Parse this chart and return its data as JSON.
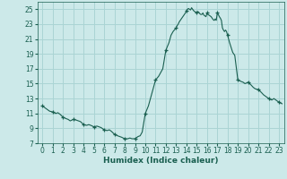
{
  "xlabel": "Humidex (Indice chaleur)",
  "xlim": [
    -0.5,
    23.5
  ],
  "ylim": [
    7,
    26
  ],
  "yticks": [
    7,
    9,
    11,
    13,
    15,
    17,
    19,
    21,
    23,
    25
  ],
  "xticks": [
    0,
    1,
    2,
    3,
    4,
    5,
    6,
    7,
    8,
    9,
    10,
    11,
    12,
    13,
    14,
    15,
    16,
    17,
    18,
    19,
    20,
    21,
    22,
    23
  ],
  "bg_color": "#cce9e9",
  "grid_color": "#aad4d4",
  "line_color": "#1a5f50",
  "x": [
    0,
    0.3,
    0.5,
    0.7,
    1,
    1.3,
    1.5,
    1.7,
    2,
    2.3,
    2.5,
    2.7,
    3,
    3.3,
    3.5,
    3.7,
    4,
    4.3,
    4.5,
    4.7,
    5,
    5.3,
    5.5,
    5.7,
    6,
    6.3,
    6.5,
    6.7,
    7,
    7.3,
    7.5,
    7.7,
    8,
    8.3,
    8.5,
    8.7,
    9,
    9.3,
    9.5,
    9.7,
    10,
    10.3,
    10.5,
    10.7,
    11,
    11.3,
    11.5,
    11.7,
    12,
    12.3,
    12.5,
    12.7,
    13,
    13.1,
    13.2,
    13.3,
    13.4,
    13.5,
    13.6,
    13.7,
    13.8,
    13.9,
    14,
    14.1,
    14.2,
    14.3,
    14.4,
    14.5,
    14.6,
    14.7,
    14.8,
    14.9,
    15,
    15.1,
    15.2,
    15.3,
    15.4,
    15.5,
    15.6,
    15.7,
    15.8,
    15.9,
    16,
    16.1,
    16.2,
    16.3,
    16.4,
    16.5,
    16.6,
    16.7,
    16.8,
    16.9,
    17,
    17.1,
    17.2,
    17.3,
    17.4,
    17.5,
    17.6,
    17.7,
    17.8,
    17.9,
    18,
    18.2,
    18.5,
    18.7,
    19,
    19.3,
    19.5,
    19.7,
    20,
    20.3,
    20.5,
    20.7,
    21,
    21.3,
    21.5,
    21.7,
    22,
    22.3,
    22.5,
    22.7,
    23,
    23.3
  ],
  "y": [
    12.0,
    11.7,
    11.5,
    11.3,
    11.2,
    11.0,
    11.1,
    10.9,
    10.5,
    10.3,
    10.2,
    10.0,
    10.2,
    10.1,
    10.0,
    9.9,
    9.5,
    9.4,
    9.5,
    9.4,
    9.2,
    9.3,
    9.2,
    9.1,
    8.8,
    8.7,
    8.8,
    8.6,
    8.2,
    8.0,
    7.9,
    7.8,
    7.6,
    7.6,
    7.7,
    7.6,
    7.6,
    7.9,
    8.0,
    8.5,
    11.0,
    12.0,
    13.0,
    14.0,
    15.5,
    16.0,
    16.5,
    17.0,
    19.5,
    20.5,
    21.5,
    22.0,
    22.5,
    22.8,
    23.0,
    23.3,
    23.5,
    23.7,
    23.9,
    24.1,
    24.3,
    24.5,
    24.8,
    25.0,
    25.1,
    25.0,
    24.9,
    25.2,
    25.0,
    24.8,
    24.7,
    24.6,
    24.5,
    24.7,
    24.6,
    24.4,
    24.3,
    24.3,
    24.5,
    24.2,
    24.1,
    24.0,
    24.5,
    24.3,
    24.2,
    24.1,
    24.0,
    23.8,
    23.6,
    23.5,
    23.7,
    23.5,
    24.5,
    24.3,
    24.0,
    23.8,
    23.5,
    22.5,
    22.2,
    22.0,
    22.2,
    22.0,
    21.5,
    20.5,
    19.2,
    18.8,
    15.5,
    15.3,
    15.2,
    15.0,
    15.2,
    14.8,
    14.5,
    14.3,
    14.2,
    13.8,
    13.5,
    13.3,
    13.0,
    12.8,
    13.0,
    12.8,
    12.5,
    12.3
  ],
  "marker_x": [
    0,
    1,
    2,
    3,
    4,
    5,
    6,
    7,
    8,
    9,
    10,
    11,
    12,
    13,
    14,
    15,
    16,
    17,
    18,
    19,
    20,
    21,
    22,
    23
  ],
  "marker_y": [
    12.0,
    11.2,
    10.5,
    10.2,
    9.5,
    9.2,
    8.8,
    8.2,
    7.6,
    7.6,
    11.0,
    15.5,
    19.5,
    22.5,
    24.8,
    24.5,
    24.5,
    24.5,
    21.5,
    15.5,
    15.2,
    14.2,
    13.0,
    12.5
  ]
}
